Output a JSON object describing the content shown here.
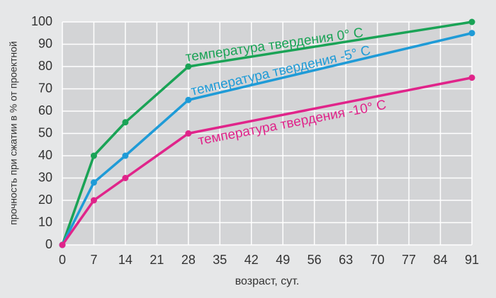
{
  "chart_data": {
    "type": "line",
    "xlabel": "возраст, сут.",
    "ylabel": "прочность при сжатии в % от проектной",
    "x": [
      0,
      7,
      14,
      28,
      91
    ],
    "series": [
      {
        "name": "температура твердения 0° С",
        "color": "#1aa356",
        "values": [
          0,
          40,
          55,
          80,
          100
        ]
      },
      {
        "name": "температура твердения -5° С",
        "color": "#1f9bd7",
        "values": [
          0,
          28,
          40,
          65,
          95
        ]
      },
      {
        "name": "температура твердения -10° С",
        "color": "#e0248a",
        "values": [
          0,
          20,
          30,
          50,
          75
        ]
      }
    ],
    "xlim": [
      0,
      91
    ],
    "xticks": [
      0,
      7,
      14,
      21,
      28,
      35,
      42,
      49,
      56,
      63,
      70,
      77,
      84,
      91
    ],
    "ylim": [
      0,
      100
    ],
    "yticks": [
      0,
      10,
      20,
      30,
      40,
      50,
      60,
      70,
      80,
      90,
      100
    ],
    "grid": true
  }
}
